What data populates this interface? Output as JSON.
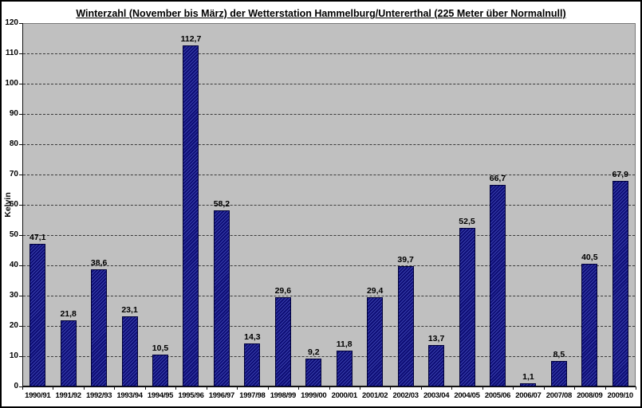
{
  "chart_data": {
    "type": "bar",
    "title": "Winterzahl (November bis März) der Wetterstation Hammelburg/Untererthal (225 Meter über Normalnull)",
    "xlabel": "",
    "ylabel": "Kelvin",
    "ylim": [
      0,
      120
    ],
    "ytick_step": 10,
    "grid": true,
    "grid_style": "dashed",
    "legend": false,
    "bar_color": "#10107e",
    "plot_background": "#c0c0c0",
    "categories": [
      "1990/91",
      "1991/92",
      "1992/93",
      "1993/94",
      "1994/95",
      "1995/96",
      "1996/97",
      "1997/98",
      "1998/99",
      "1999/00",
      "2000/01",
      "2001/02",
      "2002/03",
      "2003/04",
      "2004/05",
      "2005/06",
      "2006/07",
      "2007/08",
      "2008/09",
      "2009/10"
    ],
    "values": [
      47.1,
      21.8,
      38.6,
      23.1,
      10.5,
      112.7,
      58.2,
      14.3,
      29.6,
      9.2,
      11.8,
      29.4,
      39.7,
      13.7,
      52.5,
      66.7,
      1.1,
      8.5,
      40.5,
      67.9
    ],
    "value_labels": [
      "47,1",
      "21,8",
      "38,6",
      "23,1",
      "10,5",
      "112,7",
      "58,2",
      "14,3",
      "29,6",
      "9,2",
      "11,8",
      "29,4",
      "39,7",
      "13,7",
      "52,5",
      "66,7",
      "1,1",
      "8,5",
      "40,5",
      "67,9"
    ]
  }
}
